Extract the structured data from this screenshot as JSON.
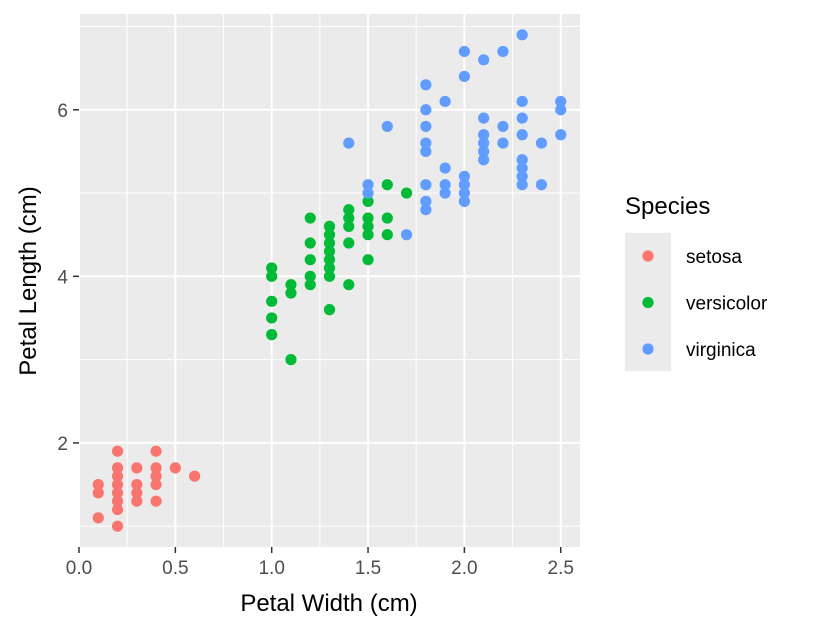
{
  "chart_data": {
    "type": "scatter",
    "xlabel": "Petal Width (cm)",
    "ylabel": "Petal Length (cm)",
    "xlim": [
      0,
      2.6
    ],
    "ylim": [
      0.75,
      7.15
    ],
    "x_ticks": [
      0.0,
      0.5,
      1.0,
      1.5,
      2.0,
      2.5
    ],
    "x_tick_labels": [
      "0.0",
      "0.5",
      "1.0",
      "1.5",
      "2.0",
      "2.5"
    ],
    "y_ticks": [
      2,
      4,
      6
    ],
    "y_tick_labels": [
      "2",
      "4",
      "6"
    ],
    "grid": true,
    "panel_background": "#EBEBEB",
    "legend": {
      "title": "Species",
      "position": "right"
    },
    "series": [
      {
        "name": "setosa",
        "color": "#F8766D",
        "points": [
          [
            0.1,
            1.1
          ],
          [
            0.1,
            1.4
          ],
          [
            0.1,
            1.5
          ],
          [
            0.2,
            1.0
          ],
          [
            0.2,
            1.2
          ],
          [
            0.2,
            1.3
          ],
          [
            0.2,
            1.4
          ],
          [
            0.2,
            1.5
          ],
          [
            0.2,
            1.6
          ],
          [
            0.2,
            1.7
          ],
          [
            0.2,
            1.9
          ],
          [
            0.3,
            1.3
          ],
          [
            0.3,
            1.4
          ],
          [
            0.3,
            1.5
          ],
          [
            0.3,
            1.7
          ],
          [
            0.4,
            1.3
          ],
          [
            0.4,
            1.5
          ],
          [
            0.4,
            1.6
          ],
          [
            0.4,
            1.7
          ],
          [
            0.4,
            1.9
          ],
          [
            0.5,
            1.7
          ],
          [
            0.6,
            1.6
          ]
        ]
      },
      {
        "name": "versicolor",
        "color": "#00BA38",
        "points": [
          [
            1.0,
            3.3
          ],
          [
            1.0,
            3.5
          ],
          [
            1.0,
            3.7
          ],
          [
            1.0,
            4.0
          ],
          [
            1.0,
            4.1
          ],
          [
            1.1,
            3.0
          ],
          [
            1.1,
            3.8
          ],
          [
            1.1,
            3.9
          ],
          [
            1.2,
            3.9
          ],
          [
            1.2,
            4.0
          ],
          [
            1.2,
            4.2
          ],
          [
            1.2,
            4.4
          ],
          [
            1.2,
            4.7
          ],
          [
            1.3,
            3.6
          ],
          [
            1.3,
            4.0
          ],
          [
            1.3,
            4.1
          ],
          [
            1.3,
            4.2
          ],
          [
            1.3,
            4.3
          ],
          [
            1.3,
            4.4
          ],
          [
            1.3,
            4.5
          ],
          [
            1.3,
            4.6
          ],
          [
            1.4,
            3.9
          ],
          [
            1.4,
            4.4
          ],
          [
            1.4,
            4.6
          ],
          [
            1.4,
            4.7
          ],
          [
            1.4,
            4.8
          ],
          [
            1.5,
            4.2
          ],
          [
            1.5,
            4.5
          ],
          [
            1.5,
            4.6
          ],
          [
            1.5,
            4.7
          ],
          [
            1.5,
            4.9
          ],
          [
            1.6,
            4.5
          ],
          [
            1.6,
            4.7
          ],
          [
            1.6,
            5.1
          ],
          [
            1.7,
            5.0
          ]
        ]
      },
      {
        "name": "virginica",
        "color": "#619CFF",
        "points": [
          [
            1.4,
            5.6
          ],
          [
            1.5,
            5.0
          ],
          [
            1.5,
            5.1
          ],
          [
            1.6,
            5.8
          ],
          [
            1.7,
            4.5
          ],
          [
            1.8,
            4.8
          ],
          [
            1.8,
            4.9
          ],
          [
            1.8,
            5.1
          ],
          [
            1.8,
            5.5
          ],
          [
            1.8,
            5.6
          ],
          [
            1.8,
            5.8
          ],
          [
            1.8,
            6.0
          ],
          [
            1.8,
            6.3
          ],
          [
            1.9,
            5.0
          ],
          [
            1.9,
            5.1
          ],
          [
            1.9,
            5.3
          ],
          [
            1.9,
            6.1
          ],
          [
            2.0,
            4.9
          ],
          [
            2.0,
            5.0
          ],
          [
            2.0,
            5.1
          ],
          [
            2.0,
            5.2
          ],
          [
            2.0,
            6.4
          ],
          [
            2.0,
            6.7
          ],
          [
            2.1,
            5.4
          ],
          [
            2.1,
            5.5
          ],
          [
            2.1,
            5.6
          ],
          [
            2.1,
            5.7
          ],
          [
            2.1,
            5.9
          ],
          [
            2.1,
            6.6
          ],
          [
            2.2,
            5.6
          ],
          [
            2.2,
            5.8
          ],
          [
            2.2,
            6.7
          ],
          [
            2.3,
            5.1
          ],
          [
            2.3,
            5.2
          ],
          [
            2.3,
            5.3
          ],
          [
            2.3,
            5.4
          ],
          [
            2.3,
            5.7
          ],
          [
            2.3,
            5.9
          ],
          [
            2.3,
            6.1
          ],
          [
            2.3,
            6.9
          ],
          [
            2.4,
            5.1
          ],
          [
            2.4,
            5.6
          ],
          [
            2.5,
            5.7
          ],
          [
            2.5,
            6.0
          ],
          [
            2.5,
            6.1
          ]
        ]
      }
    ]
  }
}
